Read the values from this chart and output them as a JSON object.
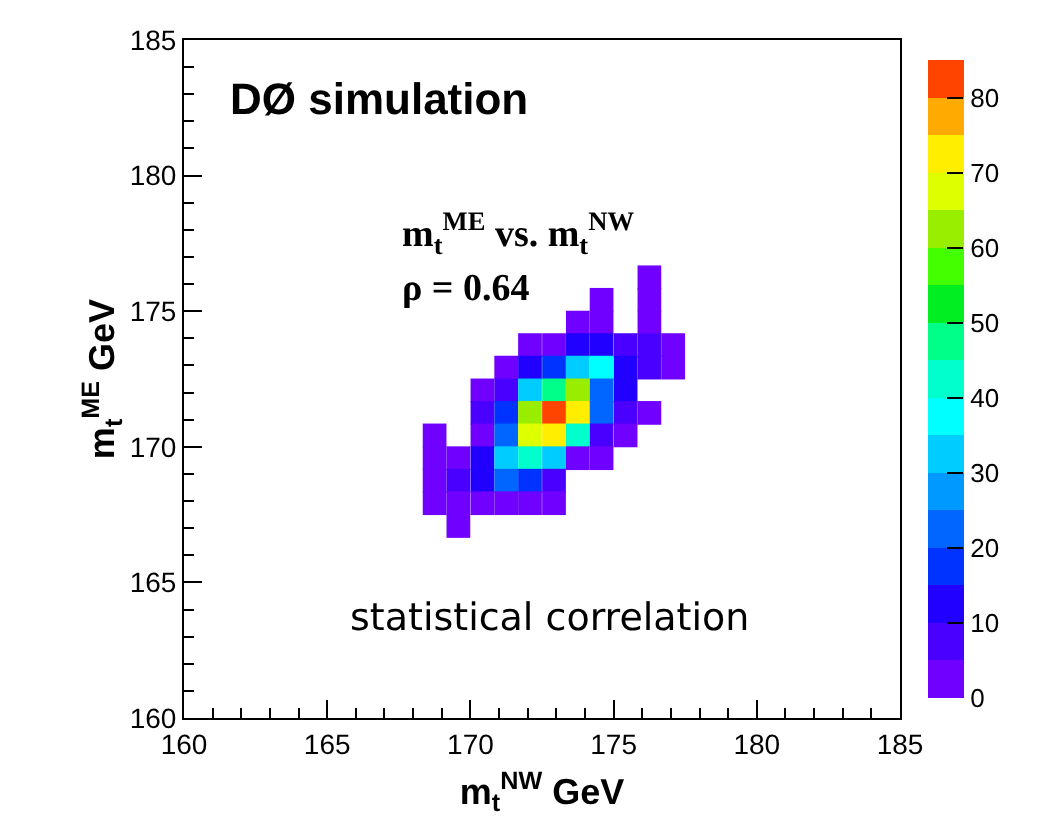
{
  "chart_data": {
    "type": "heatmap",
    "title": "DØ simulation",
    "xlabel": "m$_{t}$$^{NW}$ GeV",
    "ylabel": "m$_{t}$$^{ME}$ GeV",
    "annotations": [
      "m$_{t}$$^{ME}$ vs. m$_{t}$$^{NW}$",
      "ρ = 0.64",
      "statistical correlation"
    ],
    "x": [
      168.75,
      169.58,
      170.42,
      171.25,
      172.08,
      172.92,
      173.75,
      174.58,
      175.42,
      176.25,
      177.08
    ],
    "y": [
      176.25,
      175.42,
      174.58,
      173.75,
      172.92,
      172.08,
      171.25,
      170.42,
      169.58,
      168.75,
      167.92,
      167.08
    ],
    "cells": [
      [
        null,
        null,
        null,
        null,
        null,
        null,
        null,
        null,
        null,
        2,
        null
      ],
      [
        null,
        null,
        null,
        null,
        null,
        null,
        null,
        3,
        null,
        3,
        null
      ],
      [
        null,
        null,
        null,
        null,
        null,
        null,
        3,
        3,
        null,
        3,
        null
      ],
      [
        null,
        null,
        null,
        null,
        3,
        4,
        12,
        13,
        8,
        6,
        3
      ],
      [
        null,
        null,
        null,
        3,
        13,
        18,
        32,
        37,
        11,
        7,
        3
      ],
      [
        null,
        null,
        4,
        9,
        31,
        47,
        63,
        23,
        12,
        null,
        null
      ],
      [
        null,
        null,
        7,
        17,
        62,
        84,
        72,
        22,
        8,
        3,
        null
      ],
      [
        2,
        null,
        4,
        24,
        66,
        73,
        41,
        9,
        3,
        null,
        null
      ],
      [
        2,
        4,
        13,
        31,
        44,
        33,
        4,
        3,
        null,
        null,
        null
      ],
      [
        3,
        8,
        14,
        22,
        16,
        8,
        null,
        null,
        null,
        null,
        null
      ],
      [
        3,
        3,
        4,
        4,
        3,
        2,
        null,
        null,
        null,
        null,
        null
      ],
      [
        null,
        2,
        null,
        null,
        null,
        null,
        null,
        null,
        null,
        null,
        null
      ]
    ],
    "xlim": [
      160,
      185
    ],
    "xticks": [
      160,
      165,
      170,
      175,
      180,
      185
    ],
    "ylim": [
      160,
      185
    ],
    "yticks": [
      160,
      165,
      170,
      175,
      180,
      185
    ],
    "clim": [
      0,
      85
    ],
    "cticks": [
      0,
      10,
      20,
      30,
      40,
      50,
      60,
      70,
      80
    ]
  }
}
